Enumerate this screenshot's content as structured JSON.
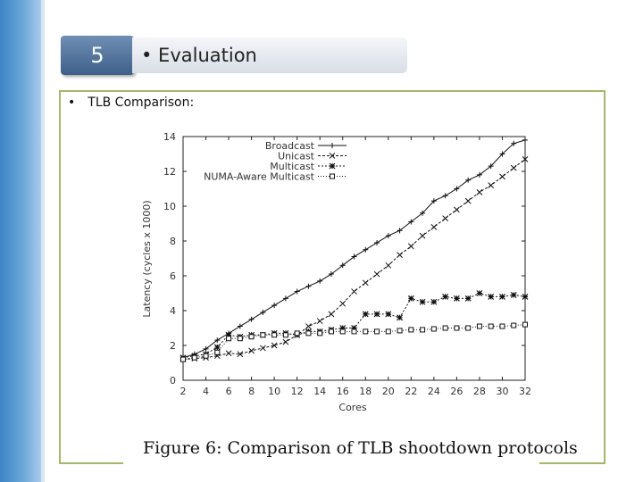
{
  "slide": {
    "number": "5",
    "title": "• Evaluation",
    "bullet": "•",
    "bullet_text": "TLB Comparison:"
  },
  "colors": {
    "side_strip": "#4f93cf",
    "frame": "#a3b86a",
    "number_box": "#4f6f98"
  },
  "chart_data": {
    "type": "line",
    "title": "Figure 6: Comparison of TLB shootdown protocols",
    "xlabel": "Cores",
    "ylabel": "Latency (cycles x 1000)",
    "xlim": [
      2,
      32
    ],
    "ylim": [
      0,
      14
    ],
    "x_ticks": [
      2,
      4,
      6,
      8,
      10,
      12,
      14,
      16,
      18,
      20,
      22,
      24,
      26,
      28,
      30,
      32
    ],
    "y_ticks": [
      0,
      2,
      4,
      6,
      8,
      10,
      12,
      14
    ],
    "legend_position": "top-right",
    "grid": false,
    "series": [
      {
        "name": "Broadcast",
        "marker": "+",
        "dash": "",
        "x": [
          2,
          3,
          4,
          5,
          6,
          7,
          8,
          9,
          10,
          11,
          12,
          13,
          14,
          15,
          16,
          17,
          18,
          19,
          20,
          21,
          22,
          23,
          24,
          25,
          26,
          27,
          28,
          29,
          30,
          31,
          32
        ],
        "y": [
          1.3,
          1.5,
          1.8,
          2.3,
          2.7,
          3.1,
          3.5,
          3.9,
          4.3,
          4.7,
          5.1,
          5.4,
          5.7,
          6.1,
          6.6,
          7.1,
          7.5,
          7.9,
          8.3,
          8.6,
          9.1,
          9.6,
          10.3,
          10.6,
          11.0,
          11.5,
          11.8,
          12.3,
          13.0,
          13.6,
          13.8
        ]
      },
      {
        "name": "Unicast",
        "marker": "x",
        "dash": "3,2",
        "x": [
          2,
          3,
          4,
          5,
          6,
          7,
          8,
          9,
          10,
          11,
          12,
          13,
          14,
          15,
          16,
          17,
          18,
          19,
          20,
          21,
          22,
          23,
          24,
          25,
          26,
          27,
          28,
          29,
          30,
          31,
          32
        ],
        "y": [
          1.2,
          1.25,
          1.3,
          1.4,
          1.55,
          1.5,
          1.7,
          1.85,
          2.0,
          2.2,
          2.6,
          3.1,
          3.4,
          3.8,
          4.4,
          5.1,
          5.6,
          6.1,
          6.6,
          7.2,
          7.7,
          8.3,
          8.8,
          9.3,
          9.8,
          10.3,
          10.8,
          11.2,
          11.7,
          12.2,
          12.7
        ]
      },
      {
        "name": "Multicast",
        "marker": "*",
        "dash": "2,2",
        "x": [
          2,
          3,
          4,
          5,
          6,
          7,
          8,
          9,
          10,
          11,
          12,
          13,
          14,
          15,
          16,
          17,
          18,
          19,
          20,
          21,
          22,
          23,
          24,
          25,
          26,
          27,
          28,
          29,
          30,
          31,
          32
        ],
        "y": [
          1.3,
          1.4,
          1.5,
          1.9,
          2.6,
          2.5,
          2.6,
          2.6,
          2.7,
          2.7,
          2.6,
          2.8,
          2.8,
          2.9,
          3.0,
          3.0,
          3.8,
          3.8,
          3.8,
          3.6,
          4.7,
          4.5,
          4.5,
          4.8,
          4.7,
          4.7,
          5.0,
          4.8,
          4.8,
          4.9,
          4.8
        ]
      },
      {
        "name": "NUMA-Aware Multicast",
        "marker": "square",
        "dash": "1,2",
        "x": [
          2,
          3,
          4,
          5,
          6,
          7,
          8,
          9,
          10,
          11,
          12,
          13,
          14,
          15,
          16,
          17,
          18,
          19,
          20,
          21,
          22,
          23,
          24,
          25,
          26,
          27,
          28,
          29,
          30,
          31,
          32
        ],
        "y": [
          1.2,
          1.3,
          1.4,
          1.6,
          2.4,
          2.4,
          2.5,
          2.6,
          2.6,
          2.6,
          2.7,
          2.7,
          2.7,
          2.8,
          2.8,
          2.8,
          2.8,
          2.8,
          2.8,
          2.85,
          2.9,
          2.9,
          2.95,
          3.0,
          3.0,
          3.0,
          3.1,
          3.1,
          3.1,
          3.15,
          3.2
        ]
      }
    ]
  }
}
